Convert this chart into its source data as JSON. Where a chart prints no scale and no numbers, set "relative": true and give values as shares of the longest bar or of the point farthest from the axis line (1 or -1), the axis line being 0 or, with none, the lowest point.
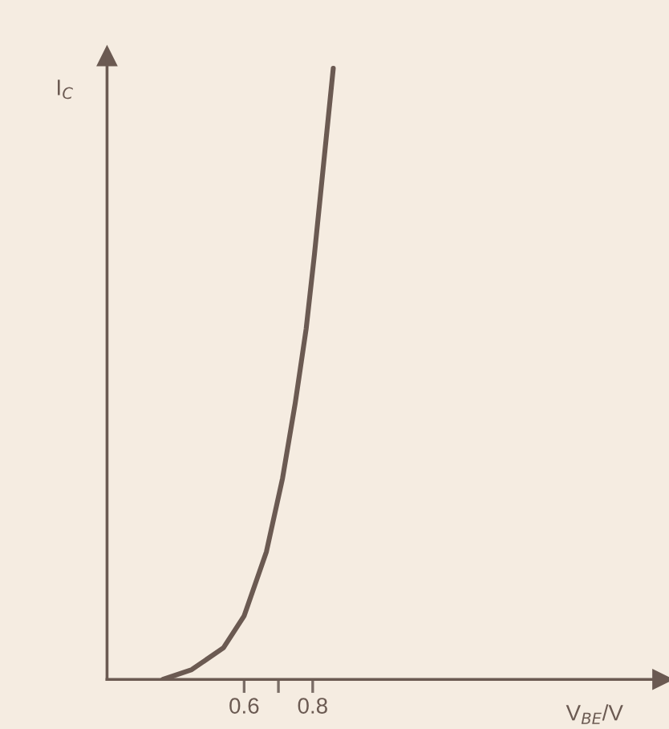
{
  "chart_data": {
    "type": "line",
    "relative": true,
    "xlabel": "V$_{BE}$/V",
    "ylabel": "I$_{C}$",
    "x": [
      0.363,
      0.447,
      0.54,
      0.6,
      0.665,
      0.712,
      0.749,
      0.781,
      0.805,
      0.86
    ],
    "series": [
      {
        "color": "#6b5a52",
        "values": [
          0,
          0.016,
          0.052,
          0.104,
          0.209,
          0.329,
          0.452,
          0.574,
          0.695,
          1
        ]
      }
    ],
    "xlim": [
      0.2,
      1.82
    ],
    "xticks": [
      0.6,
      {
        "value": 0.7,
        "label": null
      },
      0.8
    ],
    "grid": false,
    "legend": false,
    "tick_labels": "x"
  }
}
